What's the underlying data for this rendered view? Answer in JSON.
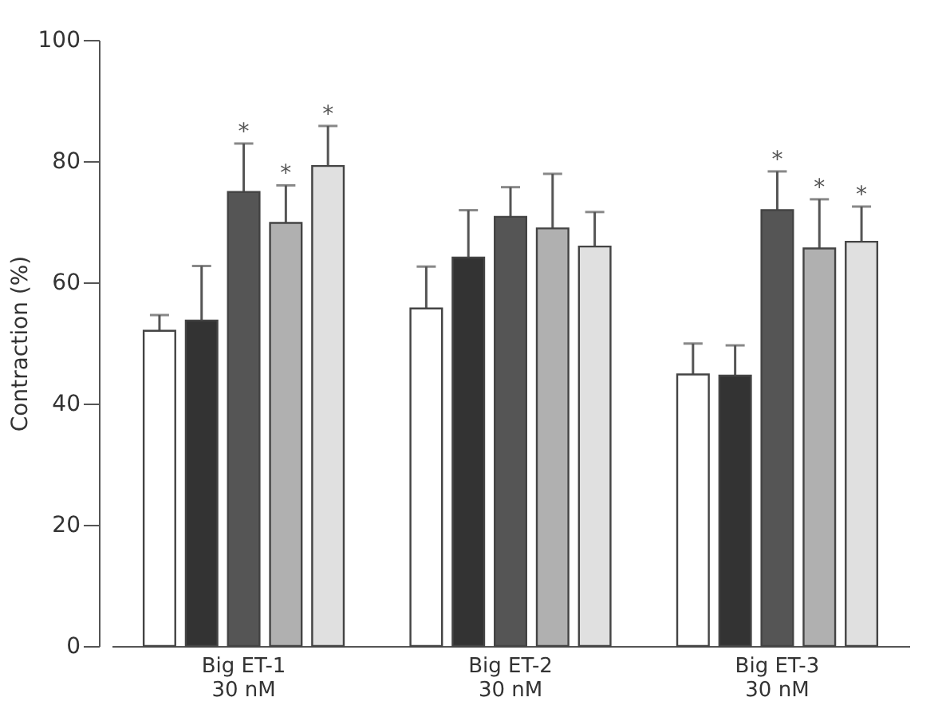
{
  "chart_data": {
    "type": "bar",
    "ylabel": "Contraction (%)",
    "categories": [
      "Big ET-1\n30 nM",
      "Big ET-2\n30 nM",
      "Big ET-3\n30 nM"
    ],
    "series": [
      {
        "color": "#ffffff",
        "values": [
          52,
          55.7,
          44.8
        ],
        "errors": [
          2.6,
          6.9,
          5.1
        ]
      },
      {
        "color": "#333333",
        "values": [
          53.7,
          64.1,
          44.6
        ],
        "errors": [
          9,
          7.8,
          5
        ]
      },
      {
        "color": "#555555",
        "values": [
          74.9,
          70.8,
          71.9
        ],
        "errors": [
          8,
          4.9,
          6.4
        ],
        "value_labels": [
          "*",
          null,
          "*"
        ]
      },
      {
        "color": "#b0b0b0",
        "values": [
          69.8,
          68.9,
          65.6
        ],
        "errors": [
          6.2,
          9,
          8.1
        ],
        "value_labels": [
          "*",
          null,
          "*"
        ]
      },
      {
        "color": "#e0e0e0",
        "values": [
          79.2,
          65.9,
          66.7
        ],
        "errors": [
          6.6,
          5.7,
          5.8
        ],
        "value_labels": [
          "*",
          null,
          "*"
        ]
      }
    ],
    "ylim": [
      0,
      100
    ],
    "yticks": [
      0,
      20,
      40,
      60,
      80,
      100
    ],
    "grid": false,
    "legend": false
  }
}
